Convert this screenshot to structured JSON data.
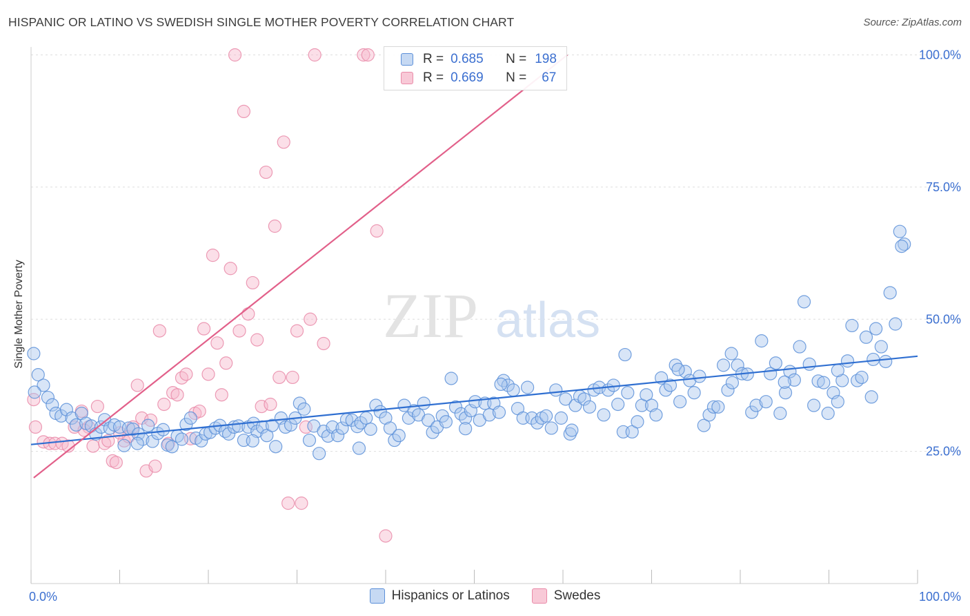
{
  "header": {
    "title": "HISPANIC OR LATINO VS SWEDISH SINGLE MOTHER POVERTY CORRELATION CHART",
    "source": "Source: ZipAtlas.com"
  },
  "watermark": {
    "zip": "ZIP",
    "atlas": "atlas"
  },
  "legend": {
    "r_label": "R =",
    "n_label": "N =",
    "series1": {
      "r": "0.685",
      "n": "198"
    },
    "series2": {
      "r": "0.669",
      "n": "67"
    }
  },
  "colors": {
    "blue_fill": "#a9c6ee",
    "blue_stroke": "#5b8fd8",
    "blue_line": "#2f6fd1",
    "pink_fill": "#f6b9cc",
    "pink_stroke": "#e98aa8",
    "pink_line": "#e2608a",
    "tick_label": "#3b6fd0",
    "grid": "#dddddd"
  },
  "chart_data": {
    "type": "scatter",
    "title": "HISPANIC OR LATINO VS SWEDISH SINGLE MOTHER POVERTY CORRELATION CHART",
    "xlabel": "",
    "ylabel": "Single Mother Poverty",
    "xlim": [
      0,
      100
    ],
    "ylim": [
      0,
      103
    ],
    "x_tick_labels": [
      "0.0%",
      "100.0%"
    ],
    "y_ticks": [
      25,
      50,
      75,
      100
    ],
    "y_tick_labels": [
      "25.0%",
      "50.0%",
      "75.0%",
      "100.0%"
    ],
    "grid": true,
    "legend_position": "bottom",
    "series": [
      {
        "name": "Hispanics or Latinos",
        "trendline": {
          "x": [
            0,
            100
          ],
          "y": [
            26.3,
            43.0
          ]
        },
        "points": [
          [
            0.3,
            43.5
          ],
          [
            0.8,
            39.5
          ],
          [
            1.4,
            37.5
          ],
          [
            1.9,
            35.2
          ],
          [
            2.4,
            33.8
          ],
          [
            2.8,
            32.2
          ],
          [
            3.4,
            31.7
          ],
          [
            4.0,
            32.9
          ],
          [
            4.6,
            31.3
          ],
          [
            5.1,
            30.0
          ],
          [
            5.7,
            32.2
          ],
          [
            6.2,
            30.3
          ],
          [
            6.8,
            29.8
          ],
          [
            7.3,
            28.3
          ],
          [
            7.9,
            29.6
          ],
          [
            8.3,
            31.0
          ],
          [
            8.9,
            29.4
          ],
          [
            9.4,
            30.0
          ],
          [
            10.0,
            29.6
          ],
          [
            10.5,
            26.1
          ],
          [
            11.0,
            29.4
          ],
          [
            11.5,
            29.2
          ],
          [
            12.1,
            28.3
          ],
          [
            12.6,
            27.3
          ],
          [
            13.2,
            29.9
          ],
          [
            13.7,
            26.9
          ],
          [
            14.3,
            28.4
          ],
          [
            14.9,
            29.1
          ],
          [
            15.4,
            26.2
          ],
          [
            15.9,
            25.9
          ],
          [
            16.5,
            27.9
          ],
          [
            17.0,
            27.3
          ],
          [
            17.5,
            30.1
          ],
          [
            18.0,
            31.3
          ],
          [
            18.6,
            27.5
          ],
          [
            19.2,
            27.0
          ],
          [
            19.7,
            28.3
          ],
          [
            20.2,
            28.6
          ],
          [
            20.8,
            29.4
          ],
          [
            21.3,
            29.9
          ],
          [
            21.9,
            28.8
          ],
          [
            22.3,
            28.3
          ],
          [
            22.9,
            29.6
          ],
          [
            23.4,
            29.8
          ],
          [
            24.0,
            27.1
          ],
          [
            24.5,
            29.6
          ],
          [
            25.1,
            30.3
          ],
          [
            25.5,
            28.8
          ],
          [
            26.1,
            29.6
          ],
          [
            26.6,
            28.0
          ],
          [
            27.2,
            29.9
          ],
          [
            27.6,
            25.9
          ],
          [
            28.2,
            31.3
          ],
          [
            28.7,
            29.6
          ],
          [
            29.3,
            30.0
          ],
          [
            29.8,
            31.3
          ],
          [
            30.3,
            34.1
          ],
          [
            30.8,
            33.0
          ],
          [
            31.4,
            27.1
          ],
          [
            31.9,
            29.8
          ],
          [
            32.5,
            24.6
          ],
          [
            33.0,
            28.8
          ],
          [
            33.5,
            27.9
          ],
          [
            34.0,
            29.6
          ],
          [
            34.6,
            28.0
          ],
          [
            35.1,
            29.4
          ],
          [
            35.6,
            31.0
          ],
          [
            36.2,
            30.9
          ],
          [
            36.8,
            29.7
          ],
          [
            37.2,
            30.4
          ],
          [
            37.8,
            31.3
          ],
          [
            38.3,
            29.2
          ],
          [
            38.9,
            33.7
          ],
          [
            39.4,
            32.5
          ],
          [
            40.0,
            31.3
          ],
          [
            40.5,
            29.4
          ],
          [
            41.0,
            27.1
          ],
          [
            41.5,
            28.0
          ],
          [
            42.1,
            33.7
          ],
          [
            42.6,
            31.3
          ],
          [
            43.2,
            32.7
          ],
          [
            43.7,
            31.9
          ],
          [
            44.3,
            34.1
          ],
          [
            44.8,
            30.9
          ],
          [
            45.3,
            28.6
          ],
          [
            45.8,
            29.6
          ],
          [
            46.4,
            31.7
          ],
          [
            46.8,
            30.6
          ],
          [
            47.4,
            38.8
          ],
          [
            47.9,
            33.4
          ],
          [
            48.5,
            32.1
          ],
          [
            49.0,
            31.3
          ],
          [
            49.6,
            32.7
          ],
          [
            50.1,
            34.4
          ],
          [
            50.6,
            30.9
          ],
          [
            51.2,
            34.1
          ],
          [
            51.7,
            31.9
          ],
          [
            52.2,
            34.1
          ],
          [
            52.8,
            32.4
          ],
          [
            53.3,
            38.4
          ],
          [
            53.8,
            37.5
          ],
          [
            54.4,
            36.6
          ],
          [
            54.9,
            33.1
          ],
          [
            55.5,
            31.3
          ],
          [
            56.0,
            37.1
          ],
          [
            56.5,
            31.3
          ],
          [
            57.1,
            30.4
          ],
          [
            57.6,
            31.3
          ],
          [
            58.1,
            31.7
          ],
          [
            58.7,
            29.4
          ],
          [
            59.2,
            36.6
          ],
          [
            59.8,
            31.3
          ],
          [
            60.3,
            34.9
          ],
          [
            60.8,
            28.3
          ],
          [
            61.4,
            33.7
          ],
          [
            61.9,
            35.4
          ],
          [
            62.4,
            34.9
          ],
          [
            63.0,
            33.4
          ],
          [
            63.5,
            36.6
          ],
          [
            64.1,
            37.1
          ],
          [
            64.6,
            31.9
          ],
          [
            65.1,
            36.6
          ],
          [
            65.7,
            37.5
          ],
          [
            66.2,
            33.9
          ],
          [
            66.8,
            28.7
          ],
          [
            67.3,
            36.1
          ],
          [
            67.8,
            28.7
          ],
          [
            68.4,
            30.6
          ],
          [
            68.9,
            33.7
          ],
          [
            69.4,
            35.7
          ],
          [
            70.0,
            33.7
          ],
          [
            70.5,
            31.9
          ],
          [
            71.1,
            38.9
          ],
          [
            71.6,
            36.6
          ],
          [
            72.1,
            37.5
          ],
          [
            72.7,
            41.3
          ],
          [
            73.2,
            34.4
          ],
          [
            73.8,
            40.1
          ],
          [
            74.3,
            38.4
          ],
          [
            74.8,
            36.1
          ],
          [
            75.4,
            39.2
          ],
          [
            75.9,
            29.9
          ],
          [
            76.5,
            31.9
          ],
          [
            77.0,
            33.4
          ],
          [
            77.5,
            33.4
          ],
          [
            78.1,
            41.3
          ],
          [
            78.6,
            36.6
          ],
          [
            79.1,
            38.0
          ],
          [
            79.7,
            41.3
          ],
          [
            80.2,
            39.7
          ],
          [
            80.8,
            39.6
          ],
          [
            81.3,
            32.4
          ],
          [
            81.8,
            33.7
          ],
          [
            82.4,
            45.9
          ],
          [
            82.9,
            34.4
          ],
          [
            83.4,
            39.7
          ],
          [
            84.0,
            41.7
          ],
          [
            84.5,
            32.2
          ],
          [
            85.1,
            36.1
          ],
          [
            85.6,
            40.1
          ],
          [
            86.1,
            38.5
          ],
          [
            86.7,
            44.8
          ],
          [
            87.2,
            53.3
          ],
          [
            87.8,
            41.5
          ],
          [
            88.3,
            33.7
          ],
          [
            88.8,
            38.3
          ],
          [
            89.4,
            38.0
          ],
          [
            89.9,
            32.2
          ],
          [
            90.5,
            36.1
          ],
          [
            91.0,
            34.4
          ],
          [
            91.5,
            38.4
          ],
          [
            92.1,
            42.1
          ],
          [
            92.6,
            48.8
          ],
          [
            93.2,
            38.4
          ],
          [
            93.7,
            39.0
          ],
          [
            94.2,
            46.6
          ],
          [
            94.8,
            35.3
          ],
          [
            95.3,
            48.2
          ],
          [
            95.9,
            44.8
          ],
          [
            96.4,
            42.0
          ],
          [
            96.9,
            55.0
          ],
          [
            97.5,
            49.1
          ],
          [
            98.0,
            66.6
          ],
          [
            98.5,
            64.2
          ],
          [
            0.4,
            36.2
          ],
          [
            12.0,
            26.5
          ],
          [
            25.0,
            27.0
          ],
          [
            37.0,
            25.6
          ],
          [
            49.0,
            29.3
          ],
          [
            61.0,
            29.0
          ],
          [
            73.0,
            40.5
          ],
          [
            85.0,
            38.1
          ],
          [
            53.0,
            37.7
          ],
          [
            67.0,
            43.3
          ],
          [
            79.0,
            43.5
          ],
          [
            91.0,
            40.3
          ],
          [
            95.0,
            42.4
          ],
          [
            98.2,
            63.8
          ]
        ]
      },
      {
        "name": "Swedes",
        "trendline": {
          "x": [
            0.3,
            60.5
          ],
          "y": [
            20.0,
            100.0
          ]
        },
        "points": [
          [
            0.3,
            34.8
          ],
          [
            0.5,
            29.6
          ],
          [
            1.4,
            26.8
          ],
          [
            2.1,
            26.5
          ],
          [
            2.7,
            26.5
          ],
          [
            3.5,
            26.5
          ],
          [
            4.2,
            26.0
          ],
          [
            4.9,
            29.6
          ],
          [
            5.7,
            32.6
          ],
          [
            6.5,
            29.6
          ],
          [
            7.0,
            26.0
          ],
          [
            7.5,
            33.5
          ],
          [
            8.3,
            26.5
          ],
          [
            8.7,
            27.0
          ],
          [
            9.2,
            23.2
          ],
          [
            9.6,
            22.9
          ],
          [
            10.5,
            27.0
          ],
          [
            11.0,
            27.8
          ],
          [
            11.5,
            29.6
          ],
          [
            12.0,
            37.5
          ],
          [
            12.5,
            31.3
          ],
          [
            13.0,
            21.3
          ],
          [
            13.5,
            30.9
          ],
          [
            14.0,
            22.2
          ],
          [
            14.5,
            47.8
          ],
          [
            15.0,
            33.9
          ],
          [
            15.5,
            26.5
          ],
          [
            16.0,
            36.1
          ],
          [
            16.5,
            35.7
          ],
          [
            17.0,
            38.9
          ],
          [
            17.5,
            39.6
          ],
          [
            18.0,
            27.4
          ],
          [
            18.5,
            32.2
          ],
          [
            19.0,
            32.6
          ],
          [
            19.5,
            48.2
          ],
          [
            20.0,
            39.6
          ],
          [
            20.5,
            62.1
          ],
          [
            21.0,
            45.5
          ],
          [
            21.5,
            35.7
          ],
          [
            22.0,
            41.7
          ],
          [
            22.5,
            59.6
          ],
          [
            23.0,
            100.0
          ],
          [
            23.5,
            47.8
          ],
          [
            24.0,
            89.3
          ],
          [
            24.5,
            51.0
          ],
          [
            25.0,
            56.9
          ],
          [
            25.5,
            46.1
          ],
          [
            26.0,
            33.5
          ],
          [
            26.5,
            77.8
          ],
          [
            27.0,
            33.9
          ],
          [
            27.5,
            67.6
          ],
          [
            28.0,
            39.0
          ],
          [
            28.5,
            83.5
          ],
          [
            29.0,
            15.2
          ],
          [
            29.5,
            39.0
          ],
          [
            30.0,
            47.8
          ],
          [
            30.5,
            15.2
          ],
          [
            31.0,
            29.6
          ],
          [
            31.5,
            50.0
          ],
          [
            32.0,
            100.0
          ],
          [
            33.0,
            45.4
          ],
          [
            37.5,
            100.0
          ],
          [
            38.0,
            100.0
          ],
          [
            39.0,
            66.7
          ],
          [
            40.0,
            9.0
          ],
          [
            6.0,
            29.0
          ],
          [
            10.0,
            28.5
          ]
        ]
      }
    ]
  }
}
